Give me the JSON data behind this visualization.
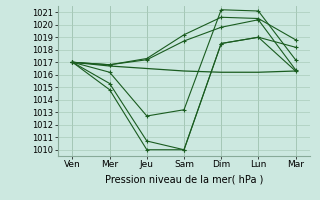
{
  "background_color": "#cce8e0",
  "grid_color": "#aaccbb",
  "line_color": "#1a5c20",
  "xlabel": "Pression niveau de la mer( hPa )",
  "xtick_labels": [
    "Ven",
    "Mer",
    "Jeu",
    "Sam",
    "Dim",
    "Lun",
    "Mar"
  ],
  "ylim": [
    1009.5,
    1021.5
  ],
  "yticks": [
    1010,
    1011,
    1012,
    1013,
    1014,
    1015,
    1016,
    1017,
    1018,
    1019,
    1020,
    1021
  ],
  "x_positions": [
    0,
    1,
    2,
    3,
    4,
    5,
    6
  ],
  "series": [
    {
      "y": [
        1017.0,
        1016.7,
        1016.5,
        1016.3,
        1016.2,
        1016.2,
        1016.3
      ],
      "marker": false,
      "lw": 0.9
    },
    {
      "y": [
        1017.0,
        1016.8,
        1017.2,
        1018.7,
        1019.8,
        1020.4,
        1016.4
      ],
      "marker": true,
      "lw": 0.8
    },
    {
      "y": [
        1017.0,
        1016.8,
        1017.3,
        1019.2,
        1020.6,
        1020.5,
        1018.8
      ],
      "marker": true,
      "lw": 0.8
    },
    {
      "y": [
        1017.0,
        1016.2,
        1012.7,
        1013.2,
        1021.2,
        1021.1,
        1017.2
      ],
      "marker": true,
      "lw": 0.8
    },
    {
      "y": [
        1017.0,
        1015.3,
        1010.7,
        1010.0,
        1018.5,
        1019.0,
        1018.2
      ],
      "marker": true,
      "lw": 0.8
    },
    {
      "y": [
        1017.0,
        1014.8,
        1010.0,
        1010.0,
        1018.5,
        1019.0,
        1016.3
      ],
      "marker": true,
      "lw": 0.8
    }
  ],
  "figsize": [
    3.2,
    2.0
  ],
  "dpi": 100,
  "xlabel_fontsize": 7.0,
  "xtick_fontsize": 6.5,
  "ytick_fontsize": 6.0
}
